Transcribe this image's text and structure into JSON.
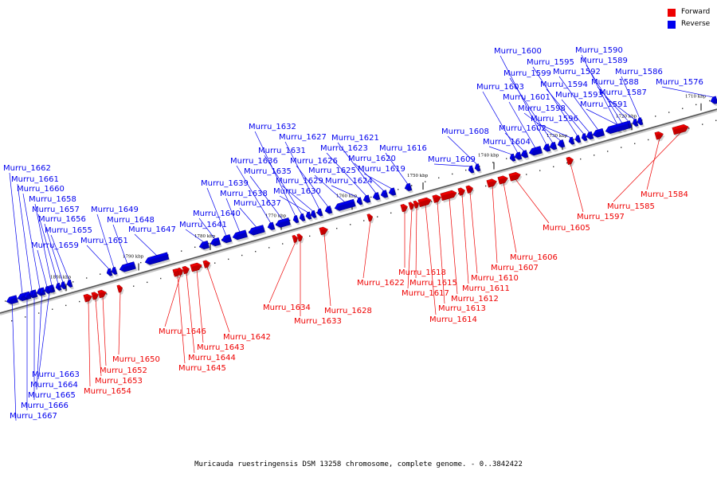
{
  "legend": [
    {
      "label": "Forward",
      "color": "#ee0000"
    },
    {
      "label": "Reverse",
      "color": "#0000ee"
    }
  ],
  "caption": "Muricauda ruestringensis DSM 13258 chromosome, complete genome. - 0..3842422",
  "ticks": [
    "1710 kbp",
    "1720 kbp",
    "1730 kbp",
    "1740 kbp",
    "1750 kbp",
    "1760 kbp",
    "1770 kbp",
    "1780 kbp",
    "1790 kbp",
    "1800 kbp"
  ],
  "genes": [
    {
      "name": "Murru_1576",
      "strand": "reverse"
    },
    {
      "name": "Murru_1584",
      "strand": "forward"
    },
    {
      "name": "Murru_1585",
      "strand": "forward"
    },
    {
      "name": "Murru_1586",
      "strand": "reverse"
    },
    {
      "name": "Murru_1587",
      "strand": "reverse"
    },
    {
      "name": "Murru_1588",
      "strand": "reverse"
    },
    {
      "name": "Murru_1589",
      "strand": "reverse"
    },
    {
      "name": "Murru_1590",
      "strand": "reverse"
    },
    {
      "name": "Murru_1591",
      "strand": "reverse"
    },
    {
      "name": "Murru_1592",
      "strand": "reverse"
    },
    {
      "name": "Murru_1593",
      "strand": "reverse"
    },
    {
      "name": "Murru_1594",
      "strand": "reverse"
    },
    {
      "name": "Murru_1595",
      "strand": "reverse"
    },
    {
      "name": "Murru_1596",
      "strand": "reverse"
    },
    {
      "name": "Murru_1597",
      "strand": "forward"
    },
    {
      "name": "Murru_1598",
      "strand": "reverse"
    },
    {
      "name": "Murru_1599",
      "strand": "reverse"
    },
    {
      "name": "Murru_1600",
      "strand": "reverse"
    },
    {
      "name": "Murru_1601",
      "strand": "reverse"
    },
    {
      "name": "Murru_1602",
      "strand": "reverse"
    },
    {
      "name": "Murru_1603",
      "strand": "reverse"
    },
    {
      "name": "Murru_1604",
      "strand": "reverse"
    },
    {
      "name": "Murru_1605",
      "strand": "forward"
    },
    {
      "name": "Murru_1606",
      "strand": "forward"
    },
    {
      "name": "Murru_1607",
      "strand": "forward"
    },
    {
      "name": "Murru_1608",
      "strand": "reverse"
    },
    {
      "name": "Murru_1609",
      "strand": "reverse"
    },
    {
      "name": "Murru_1610",
      "strand": "forward"
    },
    {
      "name": "Murru_1611",
      "strand": "forward"
    },
    {
      "name": "Murru_1612",
      "strand": "forward"
    },
    {
      "name": "Murru_1613",
      "strand": "forward"
    },
    {
      "name": "Murru_1614",
      "strand": "forward"
    },
    {
      "name": "Murru_1615",
      "strand": "forward"
    },
    {
      "name": "Murru_1616",
      "strand": "reverse"
    },
    {
      "name": "Murru_1617",
      "strand": "forward"
    },
    {
      "name": "Murru_1618",
      "strand": "forward"
    },
    {
      "name": "Murru_1619",
      "strand": "reverse"
    },
    {
      "name": "Murru_1620",
      "strand": "reverse"
    },
    {
      "name": "Murru_1621",
      "strand": "reverse"
    },
    {
      "name": "Murru_1622",
      "strand": "forward"
    },
    {
      "name": "Murru_1623",
      "strand": "reverse"
    },
    {
      "name": "Murru_1624",
      "strand": "reverse"
    },
    {
      "name": "Murru_1625",
      "strand": "reverse"
    },
    {
      "name": "Murru_1626",
      "strand": "reverse"
    },
    {
      "name": "Murru_1627",
      "strand": "reverse"
    },
    {
      "name": "Murru_1628",
      "strand": "forward"
    },
    {
      "name": "Murru_1629",
      "strand": "reverse"
    },
    {
      "name": "Murru_1630",
      "strand": "reverse"
    },
    {
      "name": "Murru_1631",
      "strand": "reverse"
    },
    {
      "name": "Murru_1632",
      "strand": "reverse"
    },
    {
      "name": "Murru_1633",
      "strand": "forward"
    },
    {
      "name": "Murru_1634",
      "strand": "forward"
    },
    {
      "name": "Murru_1635",
      "strand": "reverse"
    },
    {
      "name": "Murru_1636",
      "strand": "reverse"
    },
    {
      "name": "Murru_1637",
      "strand": "reverse"
    },
    {
      "name": "Murru_1638",
      "strand": "reverse"
    },
    {
      "name": "Murru_1639",
      "strand": "reverse"
    },
    {
      "name": "Murru_1640",
      "strand": "reverse"
    },
    {
      "name": "Murru_1641",
      "strand": "reverse"
    },
    {
      "name": "Murru_1642",
      "strand": "forward"
    },
    {
      "name": "Murru_1643",
      "strand": "forward"
    },
    {
      "name": "Murru_1644",
      "strand": "forward"
    },
    {
      "name": "Murru_1645",
      "strand": "forward"
    },
    {
      "name": "Murru_1646",
      "strand": "forward"
    },
    {
      "name": "Murru_1647",
      "strand": "reverse"
    },
    {
      "name": "Murru_1648",
      "strand": "reverse"
    },
    {
      "name": "Murru_1649",
      "strand": "reverse"
    },
    {
      "name": "Murru_1650",
      "strand": "forward"
    },
    {
      "name": "Murru_1651",
      "strand": "reverse"
    },
    {
      "name": "Murru_1652",
      "strand": "forward"
    },
    {
      "name": "Murru_1653",
      "strand": "forward"
    },
    {
      "name": "Murru_1654",
      "strand": "forward"
    },
    {
      "name": "Murru_1655",
      "strand": "reverse"
    },
    {
      "name": "Murru_1656",
      "strand": "reverse"
    },
    {
      "name": "Murru_1657",
      "strand": "reverse"
    },
    {
      "name": "Murru_1658",
      "strand": "reverse"
    },
    {
      "name": "Murru_1659",
      "strand": "reverse"
    },
    {
      "name": "Murru_1660",
      "strand": "reverse"
    },
    {
      "name": "Murru_1661",
      "strand": "reverse"
    },
    {
      "name": "Murru_1662",
      "strand": "reverse"
    },
    {
      "name": "Murru_1663",
      "strand": "reverse"
    },
    {
      "name": "Murru_1664",
      "strand": "reverse"
    },
    {
      "name": "Murru_1665",
      "strand": "reverse"
    },
    {
      "name": "Murru_1666",
      "strand": "reverse"
    },
    {
      "name": "Murru_1667",
      "strand": "reverse"
    }
  ]
}
